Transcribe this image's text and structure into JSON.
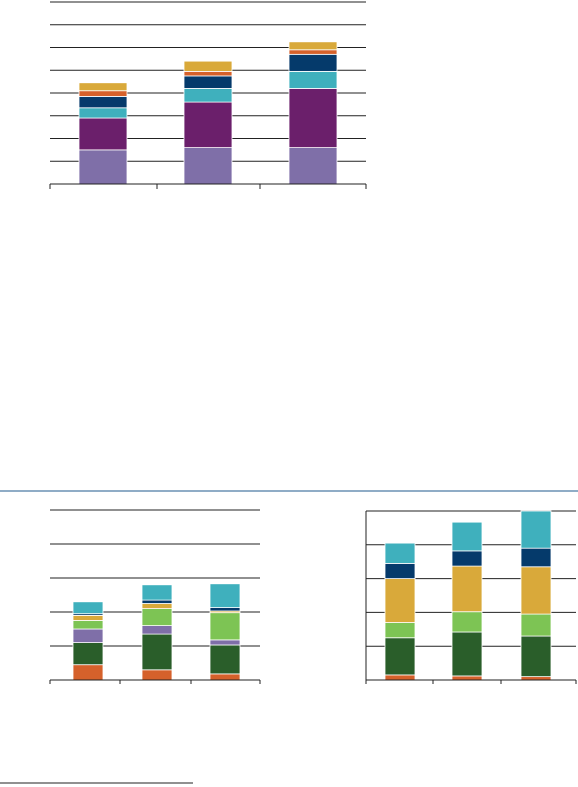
{
  "colors": {
    "lavender": "#7f6fa8",
    "purple": "#6b1f6b",
    "teal": "#3fb0bd",
    "navy": "#053a6b",
    "orange": "#d5612b",
    "gold": "#d9a93a",
    "dark_green": "#2a5e2a",
    "light_green": "#7dc454",
    "grid": "#1a1a1a",
    "divider": "#1f5a8c"
  },
  "chart_data": [
    {
      "type": "bar",
      "stacked": true,
      "categories": [
        "",
        "",
        ""
      ],
      "ylim": [
        0,
        8
      ],
      "grid": true,
      "series": [
        {
          "color": "lavender",
          "values": [
            1.5,
            1.6,
            1.6
          ]
        },
        {
          "color": "purple",
          "values": [
            1.4,
            2.0,
            2.6
          ]
        },
        {
          "color": "teal",
          "values": [
            0.45,
            0.6,
            0.75
          ]
        },
        {
          "color": "navy",
          "values": [
            0.5,
            0.55,
            0.75
          ]
        },
        {
          "color": "orange",
          "values": [
            0.25,
            0.2,
            0.2
          ]
        },
        {
          "color": "gold",
          "values": [
            0.35,
            0.45,
            0.35
          ]
        }
      ]
    },
    {
      "type": "bar",
      "stacked": true,
      "categories": [
        "",
        "",
        ""
      ],
      "ylim": [
        0,
        5
      ],
      "grid": true,
      "series": [
        {
          "color": "orange",
          "values": [
            0.45,
            0.3,
            0.18
          ]
        },
        {
          "color": "dark_green",
          "values": [
            0.65,
            1.05,
            0.85
          ]
        },
        {
          "color": "lavender",
          "values": [
            0.4,
            0.25,
            0.15
          ]
        },
        {
          "color": "light_green",
          "values": [
            0.25,
            0.5,
            0.8
          ]
        },
        {
          "color": "gold",
          "values": [
            0.15,
            0.15,
            0.05
          ]
        },
        {
          "color": "navy",
          "values": [
            0.05,
            0.1,
            0.1
          ]
        },
        {
          "color": "teal",
          "values": [
            0.35,
            0.45,
            0.7
          ]
        }
      ]
    },
    {
      "type": "bar",
      "stacked": true,
      "categories": [
        "",
        "",
        ""
      ],
      "ylim": [
        0,
        5
      ],
      "grid": true,
      "series": [
        {
          "color": "orange",
          "values": [
            0.15,
            0.12,
            0.1
          ]
        },
        {
          "color": "dark_green",
          "values": [
            1.1,
            1.3,
            1.2
          ]
        },
        {
          "color": "light_green",
          "values": [
            0.45,
            0.6,
            0.65
          ]
        },
        {
          "color": "gold",
          "values": [
            1.3,
            1.35,
            1.4
          ]
        },
        {
          "color": "navy",
          "values": [
            0.45,
            0.45,
            0.55
          ]
        },
        {
          "color": "teal",
          "values": [
            0.6,
            0.85,
            1.1
          ]
        }
      ]
    }
  ]
}
